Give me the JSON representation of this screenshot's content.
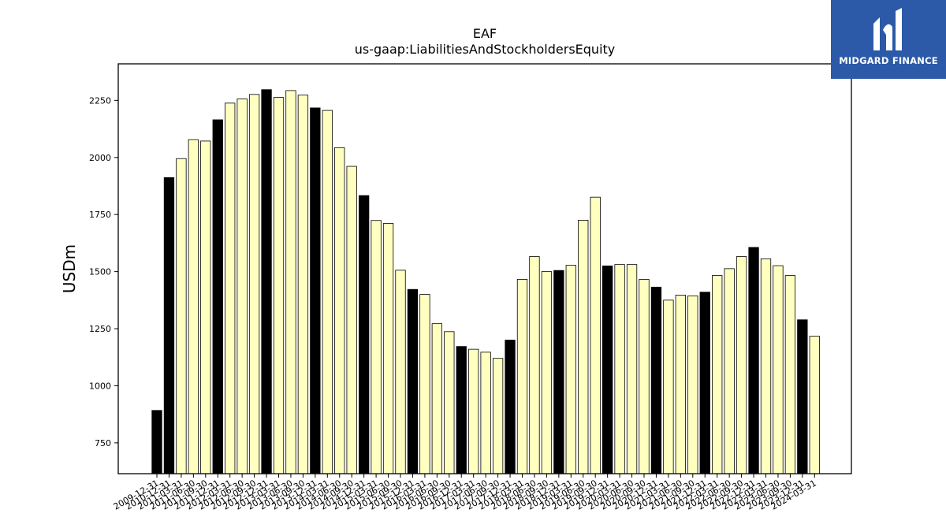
{
  "chart_data": {
    "type": "bar",
    "title": "EAF",
    "subtitle": "us-gaap:LiabilitiesAndStockholdersEquity",
    "xlabel": "",
    "ylabel": "USDm",
    "ylim": [
      615,
      2410
    ],
    "yticks": [
      750,
      1000,
      1250,
      1500,
      1750,
      2000,
      2250
    ],
    "grid": false,
    "colors": {
      "annual": "#000000",
      "quarterly": "#ffffc0",
      "edge": "#000000"
    },
    "categories": [
      "2009-12-31",
      "2010-12-31",
      "2011-03-31",
      "2011-06-30",
      "2011-09-30",
      "2011-12-31",
      "2012-03-31",
      "2012-06-30",
      "2012-09-30",
      "2012-12-31",
      "2013-03-31",
      "2013-06-30",
      "2013-09-30",
      "2013-12-31",
      "2014-03-31",
      "2014-06-30",
      "2014-09-30",
      "2014-12-31",
      "2015-03-31",
      "2015-06-30",
      "2015-09-30",
      "2015-12-31",
      "2016-03-31",
      "2016-06-30",
      "2016-09-30",
      "2016-12-31",
      "2017-03-31",
      "2017-06-30",
      "2017-09-30",
      "2017-12-31",
      "2018-03-31",
      "2018-06-30",
      "2018-09-30",
      "2018-12-31",
      "2019-03-31",
      "2019-06-30",
      "2019-09-30",
      "2019-12-31",
      "2020-03-31",
      "2020-06-30",
      "2020-09-30",
      "2020-12-31",
      "2021-03-31",
      "2021-06-30",
      "2021-09-30",
      "2021-12-31",
      "2022-03-31",
      "2022-06-30",
      "2022-09-30",
      "2022-12-31",
      "2023-03-31",
      "2023-06-30",
      "2023-09-30",
      "2023-12-31",
      "2024-03-31"
    ],
    "values": [
      892,
      1912,
      1995,
      2078,
      2072,
      2165,
      2238,
      2256,
      2276,
      2297,
      2263,
      2293,
      2273,
      2217,
      2206,
      2043,
      1961,
      1833,
      1724,
      1711,
      1506,
      1422,
      1400,
      1272,
      1237,
      1172,
      1160,
      1147,
      1120,
      1200,
      1466,
      1566,
      1500,
      1505,
      1528,
      1725,
      1826,
      1525,
      1531,
      1531,
      1466,
      1432,
      1375,
      1397,
      1394,
      1410,
      1483,
      1513,
      1566,
      1606,
      1556,
      1526,
      1483,
      1289,
      1217
    ],
    "annual": [
      true,
      true,
      false,
      false,
      false,
      true,
      false,
      false,
      false,
      true,
      false,
      false,
      false,
      true,
      false,
      false,
      false,
      true,
      false,
      false,
      false,
      true,
      false,
      false,
      false,
      true,
      false,
      false,
      false,
      true,
      false,
      false,
      false,
      true,
      false,
      false,
      false,
      true,
      false,
      false,
      false,
      true,
      false,
      false,
      false,
      true,
      false,
      false,
      false,
      true,
      false,
      false,
      false,
      true,
      false
    ]
  },
  "logo": {
    "text": "MIDGARD FINANCE",
    "background": "#2c5aa8"
  }
}
